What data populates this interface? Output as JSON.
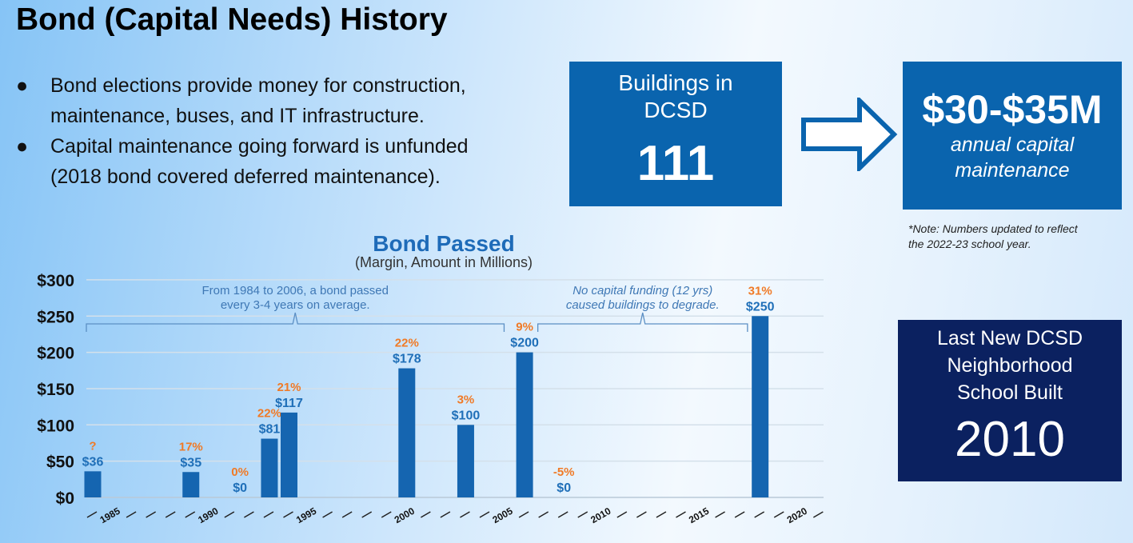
{
  "slide": {
    "title": "Bond (Capital Needs) History",
    "bullets": [
      {
        "icon": "bullet-dot",
        "text_lines": [
          "Bond elections provide money for construction,",
          "maintenance, buses, and IT infrastructure."
        ]
      },
      {
        "icon": "bullet-dot",
        "text_lines": [
          "Capital maintenance going forward is unfunded",
          "(2018 bond covered deferred maintenance)."
        ]
      }
    ]
  },
  "buildings_box": {
    "label_lines": [
      "Buildings in",
      "DCSD"
    ],
    "value": "111",
    "color": "#0a64ae"
  },
  "arrow": {
    "icon": "right-arrow"
  },
  "maintenance_box": {
    "value": "$30-$35M",
    "label_lines": [
      "annual capital",
      "maintenance"
    ],
    "color": "#0a64ae"
  },
  "note": {
    "lines": [
      "*Note: Numbers updated to reflect",
      "the 2022-23 school year."
    ]
  },
  "last_school_box": {
    "label_lines": [
      "Last New DCSD",
      "Neighborhood",
      "School Built"
    ],
    "value": "2010",
    "color": "#0b2160"
  },
  "chart_data": {
    "type": "bar",
    "title": "Bond Passed",
    "subtitle": "(Margin, Amount in Millions)",
    "ylim": [
      0,
      300
    ],
    "yticks": [
      "$0",
      "$50",
      "$100",
      "$150",
      "$200",
      "$250",
      "$300"
    ],
    "xlim": [
      1984,
      2021
    ],
    "xtick_labels": [
      "1985",
      "1990",
      "1995",
      "2000",
      "2005",
      "2010",
      "2015",
      "2020"
    ],
    "grid": true,
    "bar_color": "#1565b0",
    "amount_label_color": "#1f6fb8",
    "margin_label_color": "#f07a26",
    "bars": [
      {
        "year": 1984,
        "value": 36,
        "amount_label": "$36",
        "margin_label": "?"
      },
      {
        "year": 1989,
        "value": 35,
        "amount_label": "$35",
        "margin_label": "17%"
      },
      {
        "year": 1991.5,
        "value": 0,
        "amount_label": "$0",
        "margin_label": "0%"
      },
      {
        "year": 1993,
        "value": 81,
        "amount_label": "$81",
        "margin_label": "22%"
      },
      {
        "year": 1994,
        "value": 117,
        "amount_label": "$117",
        "margin_label": "21%"
      },
      {
        "year": 2000,
        "value": 178,
        "amount_label": "$178",
        "margin_label": "22%"
      },
      {
        "year": 2003,
        "value": 100,
        "amount_label": "$100",
        "margin_label": "3%"
      },
      {
        "year": 2006,
        "value": 200,
        "amount_label": "$200",
        "margin_label": "9%"
      },
      {
        "year": 2008,
        "value": 0,
        "amount_label": "$0",
        "margin_label": "-5%"
      },
      {
        "year": 2018,
        "value": 250,
        "amount_label": "$250",
        "margin_label": "31%"
      }
    ],
    "annotations": [
      {
        "lines": [
          "From 1984 to 2006, a bond passed",
          "every 3-4 years on average."
        ],
        "from_year": 1984,
        "to_year": 2005.2,
        "style": "normal"
      },
      {
        "lines": [
          "No capital funding (12 yrs)",
          "caused buildings to degrade."
        ],
        "from_year": 2007,
        "to_year": 2017.6,
        "style": "italic"
      }
    ]
  }
}
